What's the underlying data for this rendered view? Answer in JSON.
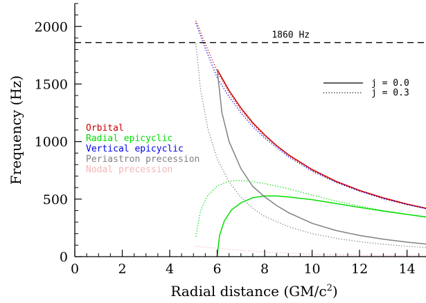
{
  "chart_data": {
    "type": "line",
    "xlabel_main": "Radial distance (GM/c",
    "xlabel_sup": "2",
    "xlabel_end": ")",
    "ylabel": "Frequency (Hz)",
    "xlim": [
      0,
      14.8
    ],
    "ylim": [
      0,
      2200
    ],
    "xticks": [
      0,
      2,
      4,
      6,
      8,
      10,
      12,
      14
    ],
    "yticks": [
      0,
      500,
      1000,
      1500,
      2000
    ],
    "reference_line": {
      "y": 1860,
      "label": "1860 Hz",
      "style": "dashed",
      "color": "#000000"
    },
    "style_legend": [
      {
        "label": "j = 0.0",
        "dash": "solid"
      },
      {
        "label": "j = 0.3",
        "dash": "dotted"
      }
    ],
    "color_legend": [
      {
        "label": "Orbital",
        "color": "#cc0000"
      },
      {
        "label": "Radial epicyclic",
        "color": "#00dd00"
      },
      {
        "label": "Vertical epicyclic",
        "color": "#0000ee"
      },
      {
        "label": "Periastron precession",
        "color": "#808080"
      },
      {
        "label": "Nodal precession",
        "color": "#f4b6b6"
      }
    ],
    "series": [
      {
        "name": "Orbital",
        "spin": "j = 0.0",
        "color": "#cc0000",
        "dash": "solid",
        "x": [
          6.0,
          6.5,
          7,
          7.5,
          8,
          8.5,
          9,
          10,
          11,
          12,
          13,
          14,
          14.8
        ],
        "y": [
          1627,
          1443,
          1292,
          1164,
          1058,
          966,
          886,
          757,
          656,
          576,
          511,
          457,
          421
        ]
      },
      {
        "name": "Orbital",
        "spin": "j = 0.3",
        "color": "#cc0000",
        "dash": "dotted",
        "x": [
          5.1,
          5.5,
          6,
          6.5,
          7,
          7.5,
          8,
          9,
          10,
          11,
          12,
          13,
          14,
          14.8
        ],
        "y": [
          2050,
          1850,
          1610,
          1425,
          1275,
          1152,
          1045,
          878,
          750,
          651,
          572,
          507,
          454,
          418
        ]
      },
      {
        "name": "Radial epicyclic",
        "spin": "j = 0.0",
        "color": "#00dd00",
        "dash": "solid",
        "x": [
          6.0,
          6.1,
          6.3,
          6.6,
          7,
          7.5,
          8,
          8.5,
          9,
          10,
          11,
          12,
          13,
          14,
          14.8
        ],
        "y": [
          0,
          185,
          310,
          405,
          468,
          512,
          527,
          527,
          519,
          495,
          462,
          428,
          396,
          367,
          345
        ]
      },
      {
        "name": "Radial epicyclic",
        "spin": "j = 0.3",
        "color": "#00dd00",
        "dash": "dotted",
        "x": [
          5.1,
          5.3,
          5.6,
          6,
          6.5,
          7,
          7.5,
          8,
          9,
          10,
          11,
          12,
          13,
          14,
          14.8
        ],
        "y": [
          175,
          400,
          530,
          615,
          655,
          662,
          652,
          635,
          590,
          535,
          483,
          440,
          400,
          367,
          342
        ]
      },
      {
        "name": "Vertical epicyclic",
        "spin": "j = 0.3",
        "color": "#0000ee",
        "dash": "dotted",
        "x": [
          5.1,
          5.5,
          6,
          6.5,
          7,
          7.5,
          8,
          9,
          10,
          11,
          12,
          13,
          14,
          14.8
        ],
        "y": [
          2030,
          1810,
          1555,
          1390,
          1250,
          1130,
          1030,
          868,
          743,
          646,
          568,
          504,
          452,
          416
        ]
      },
      {
        "name": "Periastron precession",
        "spin": "j = 0.0",
        "color": "#808080",
        "dash": "solid",
        "x": [
          6.0,
          6.2,
          6.5,
          7,
          7.5,
          8,
          8.5,
          9,
          10,
          11,
          12,
          13,
          14,
          14.8
        ],
        "y": [
          1627,
          1250,
          1000,
          765,
          610,
          520,
          445,
          383,
          290,
          228,
          184,
          152,
          126,
          110
        ]
      },
      {
        "name": "Periastron precession",
        "spin": "j = 0.3",
        "color": "#808080",
        "dash": "dotted",
        "x": [
          5.1,
          5.3,
          5.6,
          6,
          6.5,
          7,
          7.5,
          8,
          9,
          10,
          11,
          12,
          13,
          14,
          14.8
        ],
        "y": [
          1850,
          1450,
          1115,
          850,
          650,
          515,
          420,
          350,
          260,
          200,
          160,
          130,
          108,
          90,
          80
        ]
      },
      {
        "name": "Nodal precession",
        "spin": "j = 0.3",
        "color": "#f4b6b6",
        "dash": "dotted",
        "x": [
          5.1,
          6,
          7,
          8,
          9,
          10,
          11,
          12,
          13,
          14,
          14.8
        ],
        "y": [
          90,
          72,
          55,
          40,
          30,
          22,
          17,
          13,
          10,
          8,
          6
        ]
      },
      {
        "name": "Nodal precession",
        "spin": "j = 0.0",
        "color": "#f4b6b6",
        "dash": "solid",
        "x": [
          6.0,
          14.8
        ],
        "y": [
          0,
          0
        ]
      }
    ]
  }
}
